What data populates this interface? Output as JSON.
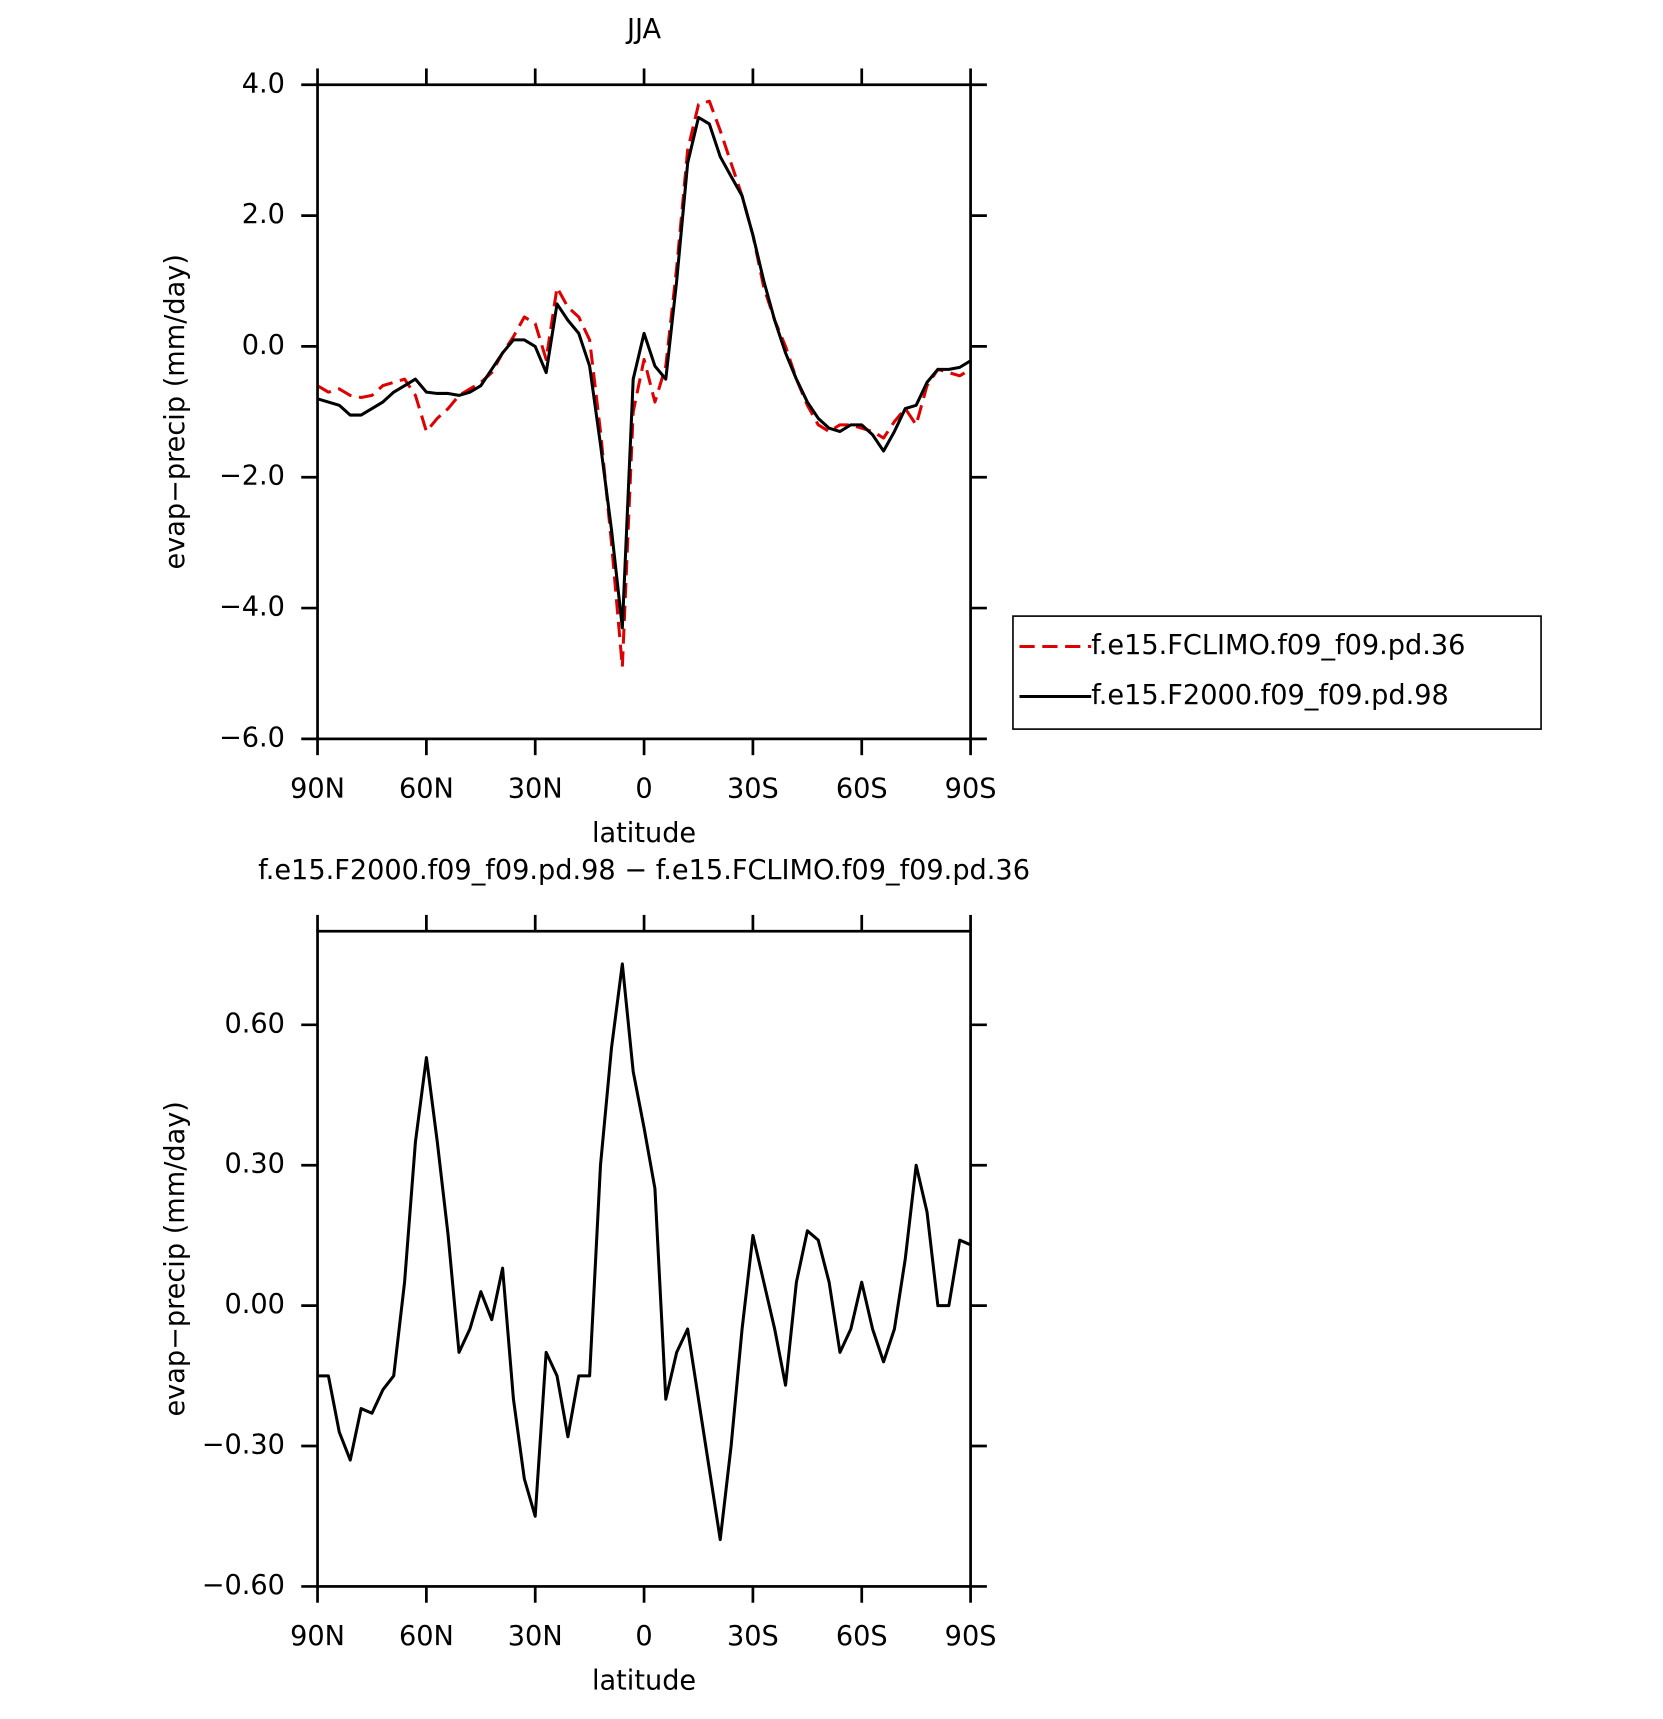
{
  "chart_data": [
    {
      "type": "line",
      "title": "JJA",
      "xlabel": "latitude",
      "ylabel": "evap−precip (mm/day)",
      "x": [
        90,
        87,
        84,
        81,
        78,
        75,
        72,
        69,
        66,
        63,
        60,
        57,
        54,
        51,
        48,
        45,
        42,
        39,
        36,
        33,
        30,
        27,
        24,
        21,
        18,
        15,
        12,
        9,
        6,
        3,
        0,
        -3,
        -6,
        -9,
        -12,
        -15,
        -18,
        -21,
        -24,
        -27,
        -30,
        -33,
        -36,
        -39,
        -42,
        -45,
        -48,
        -51,
        -54,
        -57,
        -60,
        -63,
        -66,
        -69,
        -72,
        -75,
        -78,
        -81,
        -84,
        -87,
        -90
      ],
      "series": [
        {
          "name": "f.e15.FCLIMO.f09_f09.pd.36",
          "color": "#e00000",
          "style": "dashed",
          "values": [
            -0.6,
            -0.7,
            -0.65,
            -0.75,
            -0.78,
            -0.75,
            -0.6,
            -0.55,
            -0.5,
            -0.75,
            -1.3,
            -1.1,
            -0.95,
            -0.75,
            -0.65,
            -0.55,
            -0.4,
            -0.1,
            0.15,
            0.45,
            0.35,
            -0.2,
            0.9,
            0.6,
            0.45,
            0.1,
            -1.3,
            -3.0,
            -4.9,
            -1.0,
            -0.2,
            -0.85,
            -0.3,
            1.2,
            3.0,
            3.7,
            3.75,
            3.3,
            2.8,
            2.3,
            1.7,
            0.9,
            0.4,
            0.0,
            -0.5,
            -0.9,
            -1.2,
            -1.3,
            -1.2,
            -1.2,
            -1.25,
            -1.3,
            -1.4,
            -1.15,
            -0.95,
            -1.2,
            -0.6,
            -0.35,
            -0.4,
            -0.45,
            -0.35
          ]
        },
        {
          "name": "f.e15.F2000.f09_f09.pd.98",
          "color": "#000000",
          "style": "solid",
          "values": [
            -0.8,
            -0.85,
            -0.9,
            -1.05,
            -1.05,
            -0.95,
            -0.85,
            -0.7,
            -0.6,
            -0.5,
            -0.7,
            -0.72,
            -0.72,
            -0.75,
            -0.7,
            -0.6,
            -0.35,
            -0.1,
            0.1,
            0.1,
            0.0,
            -0.4,
            0.65,
            0.4,
            0.2,
            -0.3,
            -1.5,
            -2.8,
            -4.3,
            -0.5,
            0.2,
            -0.3,
            -0.5,
            1.0,
            2.8,
            3.5,
            3.4,
            2.9,
            2.6,
            2.3,
            1.7,
            1.0,
            0.4,
            -0.1,
            -0.5,
            -0.85,
            -1.1,
            -1.25,
            -1.3,
            -1.2,
            -1.2,
            -1.35,
            -1.6,
            -1.3,
            -0.95,
            -0.9,
            -0.55,
            -0.35,
            -0.35,
            -0.32,
            -0.22
          ]
        }
      ],
      "xlim": [
        90,
        -90
      ],
      "xticks": [
        {
          "value": 90,
          "label": "90N"
        },
        {
          "value": 60,
          "label": "60N"
        },
        {
          "value": 30,
          "label": "30N"
        },
        0,
        {
          "value": -30,
          "label": "30S"
        },
        {
          "value": -60,
          "label": "60S"
        },
        {
          "value": -90,
          "label": "90S"
        }
      ],
      "ylim": [
        -6,
        4
      ],
      "yticks": [
        {
          "value": -6,
          "label": "−6.0"
        },
        {
          "value": -4,
          "label": "−4.0"
        },
        {
          "value": -2,
          "label": "−2.0"
        },
        {
          "value": 0,
          "label": "0.0"
        },
        {
          "value": 2,
          "label": "2.0"
        },
        {
          "value": 4,
          "label": "4.0"
        }
      ],
      "legend": "right"
    },
    {
      "type": "line",
      "title": "f.e15.F2000.f09_f09.pd.98 − f.e15.FCLIMO.f09_f09.pd.36",
      "xlabel": "latitude",
      "ylabel": "evap−precip (mm/day)",
      "x": [
        90,
        87,
        84,
        81,
        78,
        75,
        72,
        69,
        66,
        63,
        60,
        57,
        54,
        51,
        48,
        45,
        42,
        39,
        36,
        33,
        30,
        27,
        24,
        21,
        18,
        15,
        12,
        9,
        6,
        3,
        0,
        -3,
        -6,
        -9,
        -12,
        -15,
        -18,
        -21,
        -24,
        -27,
        -30,
        -33,
        -36,
        -39,
        -42,
        -45,
        -48,
        -51,
        -54,
        -57,
        -60,
        -63,
        -66,
        -69,
        -72,
        -75,
        -78,
        -81,
        -84,
        -87,
        -90
      ],
      "series": [
        {
          "color": "#000000",
          "style": "solid",
          "values": [
            -0.15,
            -0.15,
            -0.27,
            -0.33,
            -0.22,
            -0.23,
            -0.18,
            -0.15,
            0.05,
            0.35,
            0.53,
            0.35,
            0.15,
            -0.1,
            -0.05,
            0.03,
            -0.03,
            0.08,
            -0.2,
            -0.37,
            -0.45,
            -0.1,
            -0.15,
            -0.28,
            -0.15,
            -0.15,
            0.3,
            0.55,
            0.73,
            0.5,
            0.38,
            0.25,
            -0.2,
            -0.1,
            -0.05,
            -0.2,
            -0.35,
            -0.5,
            -0.3,
            -0.05,
            0.15,
            0.05,
            -0.05,
            -0.17,
            0.05,
            0.16,
            0.14,
            0.05,
            -0.1,
            -0.05,
            0.05,
            -0.05,
            -0.12,
            -0.05,
            0.1,
            0.3,
            0.2,
            0.0,
            0.0,
            0.14,
            0.13
          ]
        }
      ],
      "xlim": [
        90,
        -90
      ],
      "xticks": [
        {
          "value": 90,
          "label": "90N"
        },
        {
          "value": 60,
          "label": "60N"
        },
        {
          "value": 30,
          "label": "30N"
        },
        0,
        {
          "value": -30,
          "label": "30S"
        },
        {
          "value": -60,
          "label": "60S"
        },
        {
          "value": -90,
          "label": "90S"
        }
      ],
      "ylim": [
        -0.6,
        0.8
      ],
      "yticks": [
        {
          "value": -0.6,
          "label": "−0.60"
        },
        {
          "value": -0.3,
          "label": "−0.30"
        },
        {
          "value": 0,
          "label": "0.00"
        },
        {
          "value": 0.3,
          "label": "0.30"
        },
        {
          "value": 0.6,
          "label": "0.60"
        }
      ]
    }
  ]
}
